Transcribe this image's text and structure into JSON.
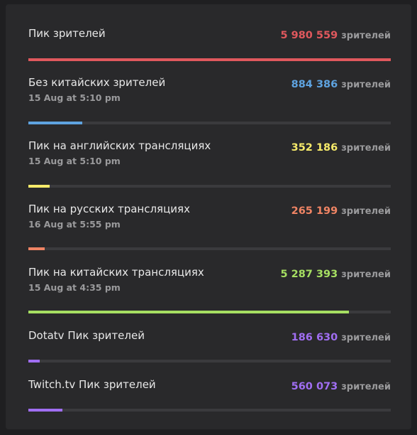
{
  "unit": "зрителей",
  "rows": [
    {
      "label": "Пик зрителей",
      "date": null,
      "value": 5980559,
      "value_label": "5 980 559",
      "color": "#e0585d"
    },
    {
      "label": "Без китайских зрителей",
      "date": "15 Aug at 5:10 pm",
      "value": 884386,
      "value_label": "884 386",
      "color": "#5ea3e0"
    },
    {
      "label": "Пик на английских трансляциях",
      "date": "15 Aug at 5:10 pm",
      "value": 352186,
      "value_label": "352 186",
      "color": "#f6ea6a"
    },
    {
      "label": "Пик на русских трансляциях",
      "date": "16 Aug at 5:55 pm",
      "value": 265199,
      "value_label": "265 199",
      "color": "#ef8464"
    },
    {
      "label": "Пик на китайских трансляциях",
      "date": "15 Aug at 4:35 pm",
      "value": 5287393,
      "value_label": "5 287 393",
      "color": "#a6df62"
    },
    {
      "label": "Dotatv Пик зрителей",
      "date": null,
      "value": 186630,
      "value_label": "186 630",
      "color": "#a06ef2"
    },
    {
      "label": "Twitch.tv Пик зрителей",
      "date": null,
      "value": 560073,
      "value_label": "560 073",
      "color": "#a06ef2"
    }
  ]
}
